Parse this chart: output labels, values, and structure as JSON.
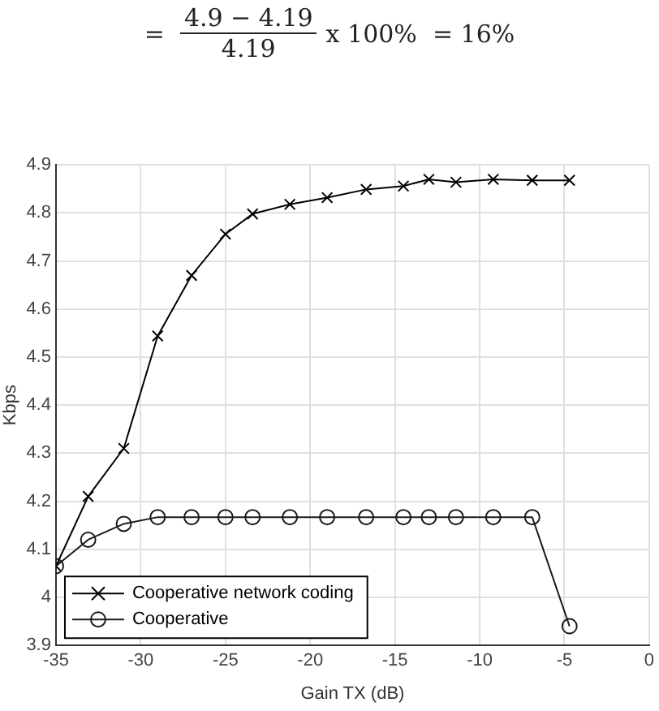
{
  "chart_data": {
    "type": "line",
    "xlabel": "Gain TX (dB)",
    "ylabel": "Kbps",
    "annotations": [
      "=",
      "4.9 − 4.19",
      "4.19",
      "x 100%  = 16%"
    ],
    "x": [
      -35,
      -33.1,
      -31,
      -29,
      -27,
      -25,
      -23.4,
      -21.2,
      -19,
      -16.7,
      -14.5,
      -13,
      -11.4,
      -9.2,
      -6.9,
      -4.7
    ],
    "series": [
      {
        "name": "Cooperative network coding",
        "color": "#000000",
        "marker": "cross",
        "values": [
          4.065,
          4.21,
          4.31,
          4.544,
          4.67,
          4.756,
          4.798,
          4.818,
          4.832,
          4.849,
          4.856,
          4.87,
          4.864,
          4.87,
          4.868,
          4.868
        ]
      },
      {
        "name": "Cooperative",
        "color": "#1a1a1a",
        "marker": "circle",
        "values": [
          4.065,
          4.12,
          4.153,
          4.167,
          4.167,
          4.167,
          4.167,
          4.167,
          4.167,
          4.167,
          4.167,
          4.167,
          4.167,
          4.167,
          4.167,
          3.94
        ]
      }
    ],
    "xlim": [
      -35,
      0
    ],
    "xticks": [
      -35,
      -30,
      -25,
      -20,
      -15,
      -10,
      -5,
      0
    ],
    "ylim": [
      3.9,
      4.9
    ],
    "yticks": [
      3.9,
      4,
      4.1,
      4.2,
      4.3,
      4.4,
      4.5,
      4.6,
      4.7,
      4.8,
      4.9
    ],
    "grid": true,
    "legend": "bottom left",
    "line_style": "solid"
  }
}
